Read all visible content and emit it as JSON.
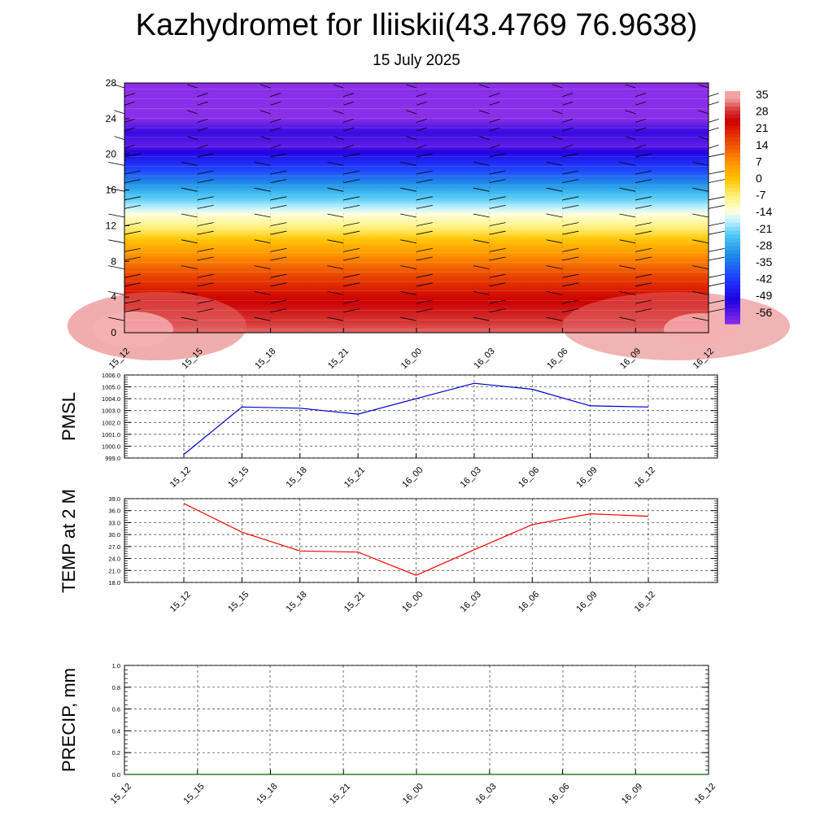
{
  "title": "Kazhydromet for Iliiskii(43.4769 76.9638)",
  "subtitle": "15 July 2025",
  "chart_data": [
    {
      "type": "heatmap",
      "name": "upper-air-temperature-cross-section",
      "x_ticks": [
        "15_12",
        "15_15",
        "15_18",
        "15_21",
        "16_00",
        "16_03",
        "16_06",
        "16_09",
        "16_12"
      ],
      "y_ticks": [
        0,
        4,
        8,
        12,
        16,
        20,
        24,
        28
      ],
      "ylim": [
        0,
        28
      ],
      "colorbar_labels": [
        35,
        28,
        21,
        14,
        7,
        0,
        -7,
        -14,
        -21,
        -28,
        -35,
        -42,
        -49,
        -56
      ],
      "colorscale": {
        "stops": [
          {
            "value": 35,
            "color": "#f4a3a3"
          },
          {
            "value": 30,
            "color": "#d63a3a"
          },
          {
            "value": 25,
            "color": "#cc0000"
          },
          {
            "value": 20,
            "color": "#e02a00"
          },
          {
            "value": 14,
            "color": "#f05a00"
          },
          {
            "value": 7,
            "color": "#ff9500"
          },
          {
            "value": 0,
            "color": "#ffc400"
          },
          {
            "value": -7,
            "color": "#fff07a"
          },
          {
            "value": -14,
            "color": "#ffffe0"
          },
          {
            "value": -18,
            "color": "#c0f0ff"
          },
          {
            "value": -24,
            "color": "#4ec8f4"
          },
          {
            "value": -32,
            "color": "#2090e6"
          },
          {
            "value": -42,
            "color": "#2040ff"
          },
          {
            "value": -52,
            "color": "#2000e0"
          },
          {
            "value": -62,
            "color": "#8a2ee8"
          }
        ]
      },
      "profile": [
        {
          "y": 0,
          "value": 32
        },
        {
          "y": 2,
          "value": 28
        },
        {
          "y": 4,
          "value": 24
        },
        {
          "y": 6,
          "value": 18
        },
        {
          "y": 8,
          "value": 10
        },
        {
          "y": 10,
          "value": 2
        },
        {
          "y": 12,
          "value": -8
        },
        {
          "y": 13.3,
          "value": -14
        },
        {
          "y": 14,
          "value": -18
        },
        {
          "y": 16,
          "value": -28
        },
        {
          "y": 18,
          "value": -40
        },
        {
          "y": 20,
          "value": -50
        },
        {
          "y": 21,
          "value": -58
        },
        {
          "y": 22.5,
          "value": -54
        },
        {
          "y": 24,
          "value": -62
        },
        {
          "y": 28,
          "value": -62
        }
      ]
    },
    {
      "type": "line",
      "ylabel": "PMSL",
      "x_ticks": [
        "15_12",
        "15_15",
        "15_18",
        "15_21",
        "16_00",
        "16_03",
        "16_06",
        "16_09",
        "16_12"
      ],
      "y_ticks": [
        "1006.0",
        "1005.0",
        "1004.0",
        "1003.0",
        "1002.0",
        "1001.0",
        "1000.0",
        "999.0"
      ],
      "ylim": [
        999,
        1006
      ],
      "color": "#0000cc",
      "values": [
        999.3,
        1003.3,
        1003.2,
        1002.7,
        1004.0,
        1005.3,
        1004.8,
        1003.4,
        1003.3
      ]
    },
    {
      "type": "line",
      "ylabel": "TEMP at 2 M",
      "x_ticks": [
        "15_12",
        "15_15",
        "15_18",
        "15_21",
        "16_00",
        "16_03",
        "16_06",
        "16_09",
        "16_12"
      ],
      "y_ticks": [
        "39.0",
        "36.0",
        "33.0",
        "30.0",
        "27.0",
        "24.0",
        "21.0",
        "18.0"
      ],
      "ylim": [
        18,
        39
      ],
      "color": "#ff0000",
      "values": [
        37.8,
        30.6,
        25.9,
        25.6,
        19.8,
        26.2,
        32.5,
        35.2,
        34.6
      ]
    },
    {
      "type": "line",
      "ylabel": "PRECIP, mm",
      "x_ticks": [
        "15_12",
        "15_15",
        "15_18",
        "15_21",
        "16_00",
        "16_03",
        "16_06",
        "16_09",
        "16_12"
      ],
      "y_ticks": [
        "1.0",
        "0.8",
        "0.6",
        "0.4",
        "0.2",
        "0.0"
      ],
      "ylim": [
        0,
        1
      ],
      "color": "#006400",
      "values": [
        0,
        0,
        0,
        0,
        0,
        0,
        0,
        0,
        0
      ]
    }
  ]
}
